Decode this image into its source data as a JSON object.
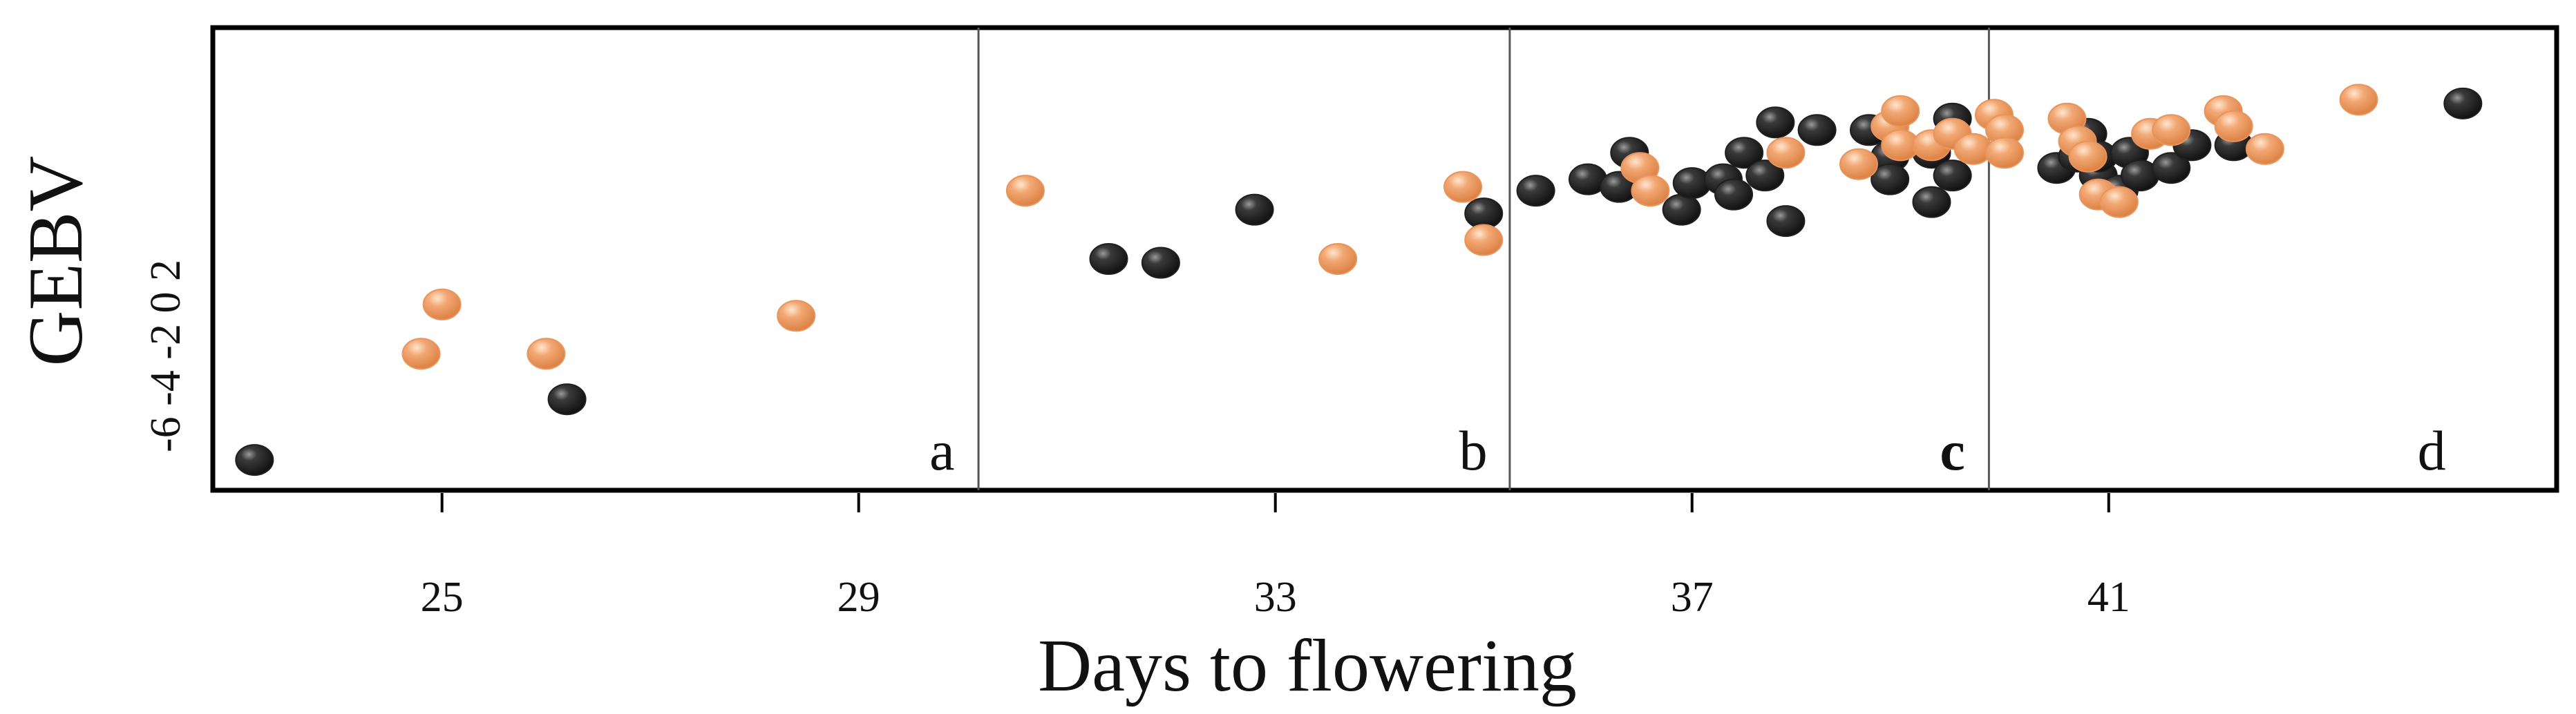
{
  "chart_data": {
    "type": "scatter",
    "xlabel": "Days to flowering",
    "ylabel": "GEBV",
    "xlim": [
      22.8,
      45.3
    ],
    "ylim": [
      -8.2,
      4.0
    ],
    "x_ticks": [
      25,
      29,
      33,
      37,
      41
    ],
    "y_ticks": [
      -6,
      -4,
      -2,
      0,
      2
    ],
    "y_tick_text": "-6 -4 -2 0 2",
    "grid": false,
    "legend": "none",
    "colors": {
      "dark": "#1f1f1f",
      "orange": "#e8955d"
    },
    "dividers_x": [
      30.15,
      35.25,
      39.85
    ],
    "panels": [
      {
        "label": "a",
        "x": 29.8
      },
      {
        "label": "b",
        "x": 34.9
      },
      {
        "label": "c",
        "x": 39.5
      },
      {
        "label": "d",
        "x": 44.1
      }
    ],
    "series": [
      {
        "color": "dark",
        "points": [
          [
            23.2,
            -7.4
          ],
          [
            26.2,
            -5.8
          ],
          [
            31.4,
            -2.1
          ],
          [
            31.9,
            -2.2
          ],
          [
            32.8,
            -0.8
          ],
          [
            35.0,
            -0.9
          ],
          [
            35.5,
            -0.3
          ],
          [
            36.0,
            0.0
          ],
          [
            36.3,
            -0.2
          ],
          [
            36.4,
            0.7
          ],
          [
            36.9,
            -0.8
          ],
          [
            37.0,
            -0.1
          ],
          [
            37.3,
            0.0
          ],
          [
            37.4,
            -0.4
          ],
          [
            37.5,
            0.7
          ],
          [
            37.8,
            1.5
          ],
          [
            37.7,
            0.1
          ],
          [
            37.9,
            -1.1
          ],
          [
            38.2,
            1.3
          ],
          [
            38.7,
            1.3
          ],
          [
            38.9,
            0.6
          ],
          [
            38.9,
            0.0
          ],
          [
            39.3,
            -0.6
          ],
          [
            39.3,
            0.7
          ],
          [
            39.5,
            1.6
          ],
          [
            39.5,
            0.1
          ],
          [
            40.5,
            0.3
          ],
          [
            40.7,
            0.6
          ],
          [
            40.8,
            1.2
          ],
          [
            40.9,
            0.1
          ],
          [
            40.9,
            0.6
          ],
          [
            41.1,
            -0.3
          ],
          [
            41.2,
            0.7
          ],
          [
            41.3,
            0.1
          ],
          [
            41.6,
            0.3
          ],
          [
            41.8,
            0.9
          ],
          [
            42.2,
            0.9
          ],
          [
            44.4,
            2.0
          ]
        ]
      },
      {
        "color": "orange",
        "points": [
          [
            24.8,
            -4.6
          ],
          [
            25.0,
            -3.3
          ],
          [
            26.0,
            -4.6
          ],
          [
            28.4,
            -3.6
          ],
          [
            30.6,
            -0.3
          ],
          [
            33.6,
            -2.1
          ],
          [
            34.8,
            -0.2
          ],
          [
            35.0,
            -1.6
          ],
          [
            36.5,
            0.3
          ],
          [
            36.6,
            -0.3
          ],
          [
            37.9,
            0.7
          ],
          [
            38.6,
            0.4
          ],
          [
            38.9,
            1.4
          ],
          [
            39.0,
            1.8
          ],
          [
            39.0,
            0.9
          ],
          [
            39.3,
            0.9
          ],
          [
            39.5,
            1.2
          ],
          [
            39.7,
            0.8
          ],
          [
            39.9,
            1.7
          ],
          [
            40.0,
            1.3
          ],
          [
            40.0,
            0.7
          ],
          [
            40.6,
            1.6
          ],
          [
            40.7,
            1.0
          ],
          [
            40.8,
            0.6
          ],
          [
            40.9,
            -0.4
          ],
          [
            41.1,
            -0.6
          ],
          [
            41.4,
            1.2
          ],
          [
            41.6,
            1.3
          ],
          [
            42.1,
            1.8
          ],
          [
            42.2,
            1.4
          ],
          [
            42.5,
            0.8
          ],
          [
            43.4,
            2.1
          ]
        ]
      }
    ]
  }
}
